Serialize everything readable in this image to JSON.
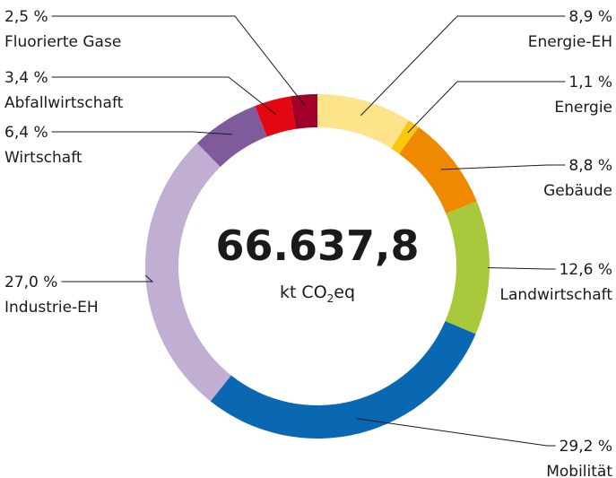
{
  "chart_data": {
    "type": "pie",
    "donut": true,
    "categories": [
      "Energie-EH",
      "Energie",
      "Gebäude",
      "Landwirtschaft",
      "Mobilität",
      "Industrie-EH",
      "Wirtschaft",
      "Abfallwirtschaft",
      "Fluorierte Gase"
    ],
    "values": [
      8.9,
      1.1,
      8.8,
      12.6,
      29.2,
      27.0,
      6.4,
      3.4,
      2.5
    ],
    "value_labels": [
      "8,9 %",
      "1,1 %",
      "8,8 %",
      "12,6 %",
      "29,2 %",
      "27,0 %",
      "6,4 %",
      "3,4 %",
      "2,5 %"
    ],
    "colors": [
      "#fde38a",
      "#f9c80e",
      "#ef8a00",
      "#a9c83b",
      "#0a67b2",
      "#c1aed3",
      "#7f5b9c",
      "#e30613",
      "#a1002b"
    ],
    "center_label": "66.637,8",
    "center_unit": [
      "kt CO",
      "2",
      "eq"
    ]
  }
}
